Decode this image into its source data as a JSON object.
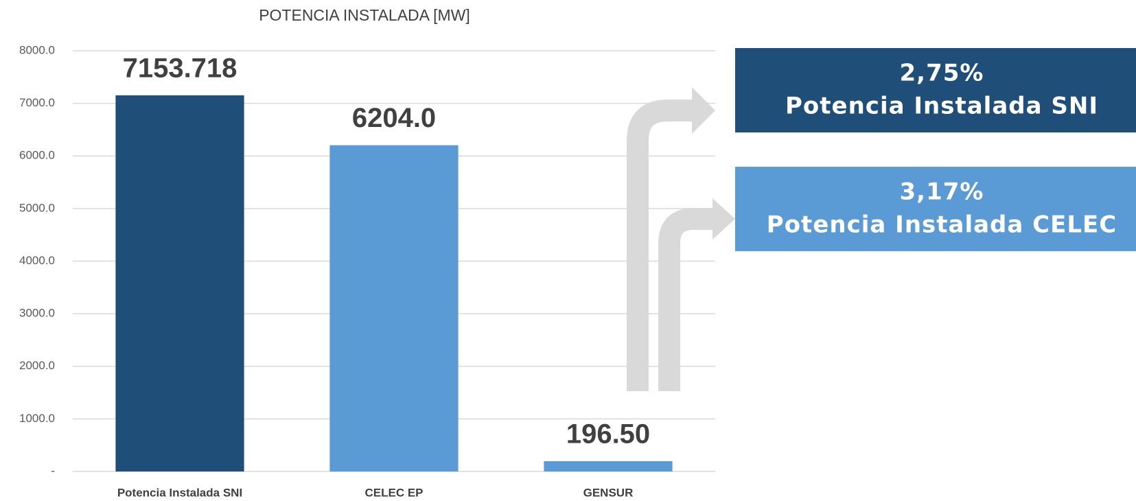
{
  "chart_data": {
    "type": "bar",
    "title": "POTENCIA INSTALADA [MW]",
    "categories": [
      "Potencia Instalada SNI",
      "CELEC EP",
      "GENSUR"
    ],
    "values": [
      7153.718,
      6204,
      196.5
    ],
    "value_labels": [
      "7153.718",
      "6204.0",
      "196.50"
    ],
    "colors": [
      "#1f4e79",
      "#5b9bd5",
      "#5b9bd5"
    ],
    "ylim": [
      0,
      8000
    ],
    "yticks": [
      {
        "value": 0,
        "label": "-"
      },
      {
        "value": 1000,
        "label": "1000.0"
      },
      {
        "value": 2000,
        "label": "2000.0"
      },
      {
        "value": 3000,
        "label": "3000.0"
      },
      {
        "value": 4000,
        "label": "4000.0"
      },
      {
        "value": 5000,
        "label": "5000.0"
      },
      {
        "value": 6000,
        "label": "6000.0"
      },
      {
        "value": 7000,
        "label": "7000.0"
      },
      {
        "value": 8000,
        "label": "8000.0"
      }
    ],
    "grid": true,
    "annotations": [
      {
        "lines": [
          "2,75%",
          "Potencia Instalada SNI"
        ],
        "color": "#1f4e79"
      },
      {
        "lines": [
          "3,17%",
          "Potencia Instalada CELEC"
        ],
        "color": "#5b9bd5"
      }
    ]
  }
}
